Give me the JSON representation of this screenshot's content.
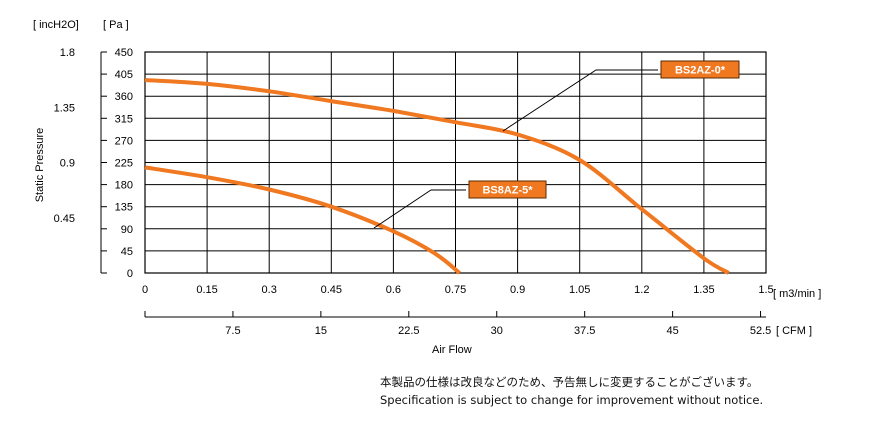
{
  "chart_data": {
    "type": "line",
    "x_unit_top": "[ m3/min ]",
    "x_unit_bottom": "[ CFM ]",
    "x_label": "Air   Flow",
    "y_label": "Static Pressure",
    "y_unit_left": "[ incH2O]",
    "y_unit_right": "[ Pa ]",
    "xlim": [
      0,
      1.5
    ],
    "ylim": [
      0,
      450
    ],
    "x_ticks_m3min": [
      "0",
      "0.15",
      "0.3",
      "0.45",
      "0.6",
      "0.75",
      "0.9",
      "1.05",
      "1.2",
      "1.35",
      "1.5"
    ],
    "x_ticks_cfm": [
      "7.5",
      "15",
      "22.5",
      "30",
      "37.5",
      "45",
      "52.5"
    ],
    "y_ticks_pa": [
      "0",
      "45",
      "90",
      "135",
      "180",
      "225",
      "270",
      "315",
      "360",
      "405",
      "450"
    ],
    "y_ticks_inch2o": [
      "0.45",
      "0.9",
      "1.35",
      "1.8"
    ],
    "grid": true,
    "series": [
      {
        "name": "BS2AZ-0*",
        "color": "#f07820",
        "x": [
          0,
          0.15,
          0.3,
          0.45,
          0.6,
          0.75,
          0.9,
          1.05,
          1.2,
          1.35,
          1.41
        ],
        "y": [
          393,
          385,
          370,
          350,
          330,
          307,
          282,
          230,
          130,
          30,
          0
        ]
      },
      {
        "name": "BS8AZ-5*",
        "color": "#f07820",
        "x": [
          0,
          0.15,
          0.3,
          0.45,
          0.6,
          0.7,
          0.76
        ],
        "y": [
          215,
          195,
          170,
          135,
          85,
          40,
          0
        ]
      }
    ]
  },
  "notes": {
    "japanese": "本製品の仕様は改良などのため、予告無しに変更することがございます。",
    "english": "Specification is subject to change for improvement without notice."
  }
}
